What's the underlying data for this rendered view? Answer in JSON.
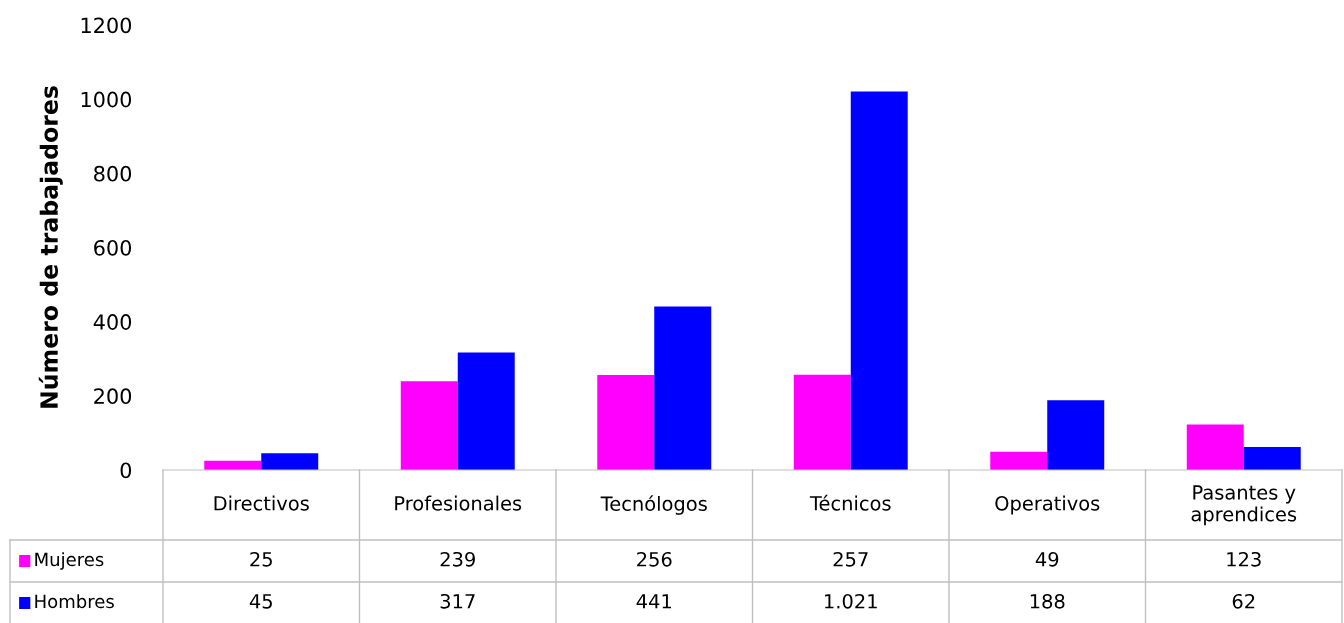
{
  "chart_data": {
    "type": "bar",
    "ylabel": "Número de trabajadores",
    "categories": [
      "Directivos",
      "Profesionales",
      "Tecnólogos",
      "Técnicos",
      "Operativos",
      "Pasantes y\naprendices"
    ],
    "series": [
      {
        "name": "Mujeres",
        "color": "#ff00ff",
        "values": [
          25,
          239,
          256,
          257,
          49,
          123
        ],
        "value_labels": [
          "25",
          "239",
          "256",
          "257",
          "49",
          "123"
        ]
      },
      {
        "name": "Hombres",
        "color": "#0000ff",
        "values": [
          45,
          317,
          441,
          1021,
          188,
          62
        ],
        "value_labels": [
          "45",
          "317",
          "441",
          "1.021",
          "188",
          "62"
        ]
      }
    ],
    "ylim": [
      0,
      1200
    ],
    "yticks": [
      0,
      200,
      400,
      600,
      800,
      1000,
      1200
    ],
    "grid": false,
    "legend": "bottom left"
  }
}
